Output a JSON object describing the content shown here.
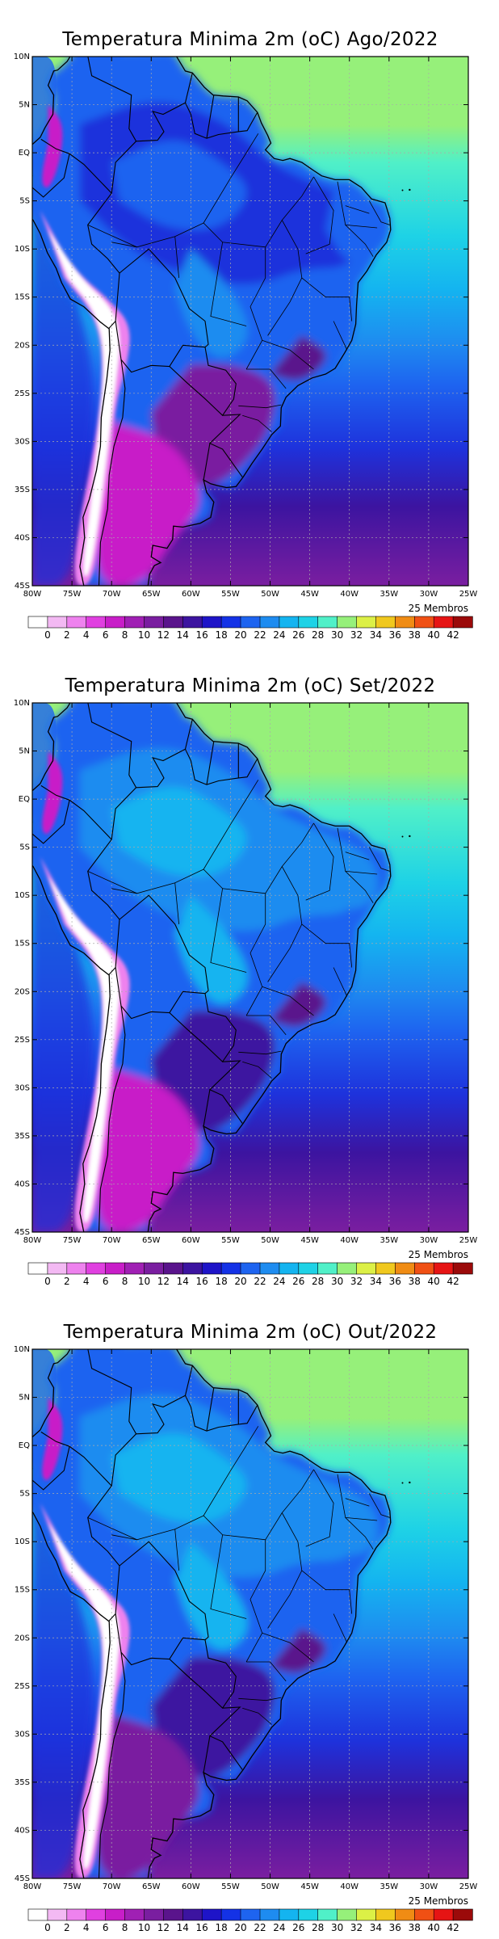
{
  "maps": [
    {
      "title": "Temperatura Minima 2m (oC) Ago/2022",
      "members": "25 Membros",
      "variant": 0
    },
    {
      "title": "Temperatura Minima 2m (oC) Set/2022",
      "members": "25 Membros",
      "variant": 1
    },
    {
      "title": "Temperatura Minima 2m (oC) Out/2022",
      "members": "25 Membros",
      "variant": 2
    }
  ],
  "lat_ticks": [
    "10N",
    "5N",
    "EQ",
    "5S",
    "10S",
    "15S",
    "20S",
    "25S",
    "30S",
    "35S",
    "40S",
    "45S"
  ],
  "lon_ticks": [
    "80W",
    "75W",
    "70W",
    "65W",
    "60W",
    "55W",
    "50W",
    "45W",
    "40W",
    "35W",
    "30W",
    "25W"
  ],
  "colorbar": {
    "labels": [
      "0",
      "2",
      "4",
      "6",
      "8",
      "10",
      "12",
      "14",
      "16",
      "18",
      "20",
      "22",
      "24",
      "26",
      "28",
      "30",
      "32",
      "34",
      "36",
      "38",
      "40",
      "42"
    ],
    "colors": [
      "#ffffff",
      "#f3b9f3",
      "#ee82ee",
      "#e040e0",
      "#c81ec8",
      "#a020b4",
      "#7a1ea0",
      "#5a148c",
      "#3c14a0",
      "#1e14c8",
      "#1432e6",
      "#1e64f0",
      "#1e8cf0",
      "#14b4f0",
      "#1ed2e6",
      "#50f0c8",
      "#96f07a",
      "#dcf046",
      "#f0c81e",
      "#f08c14",
      "#f05014",
      "#e61414",
      "#9b0a0a"
    ]
  }
}
